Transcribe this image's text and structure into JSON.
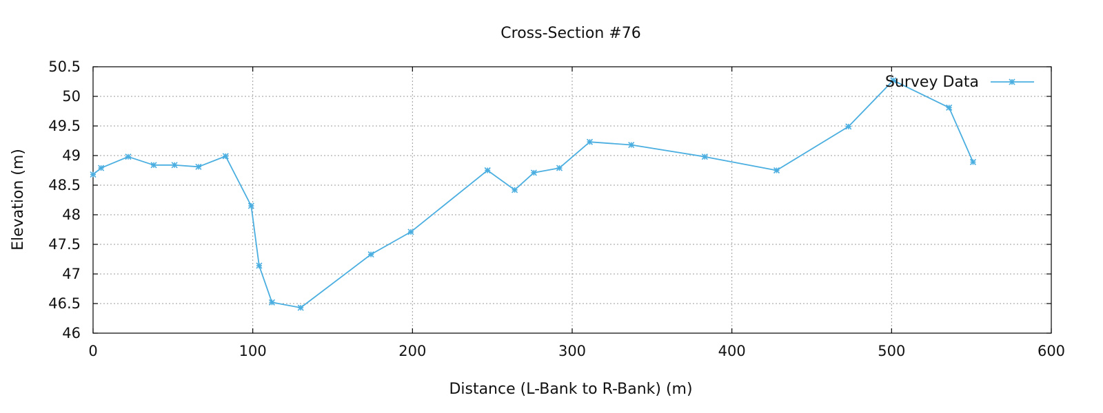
{
  "chart_data": {
    "type": "line",
    "title": "Cross-Section #76",
    "xlabel": "Distance (L-Bank to R-Bank) (m)",
    "ylabel": "Elevation (m)",
    "xlim": [
      0,
      600
    ],
    "ylim": [
      46,
      50.5
    ],
    "xticks": [
      0,
      100,
      200,
      300,
      400,
      500,
      600
    ],
    "yticks": [
      46,
      46.5,
      47,
      47.5,
      48,
      48.5,
      49,
      49.5,
      50,
      50.5
    ],
    "xtick_labels": [
      "0",
      "100",
      "200",
      "300",
      "400",
      "500",
      "600"
    ],
    "ytick_labels": [
      "46",
      "46.5",
      "47",
      "47.5",
      "48",
      "48.5",
      "49",
      "49.5",
      "50",
      "50.5"
    ],
    "grid": true,
    "legend_position": "top-right",
    "colors": {
      "series": "#4aaee0"
    },
    "series": [
      {
        "name": "Survey Data",
        "marker": "asterisk",
        "x": [
          0,
          5,
          22,
          38,
          51,
          66,
          83,
          99,
          104,
          112,
          130,
          174,
          199,
          247,
          264,
          276,
          292,
          311,
          337,
          383,
          428,
          473,
          501,
          536,
          551
        ],
        "y": [
          48.68,
          48.79,
          48.98,
          48.84,
          48.84,
          48.81,
          48.99,
          48.15,
          47.14,
          46.52,
          46.43,
          47.33,
          47.71,
          48.75,
          48.42,
          48.71,
          48.79,
          49.23,
          49.18,
          48.98,
          48.75,
          49.49,
          50.27,
          49.81,
          48.89
        ]
      }
    ]
  }
}
